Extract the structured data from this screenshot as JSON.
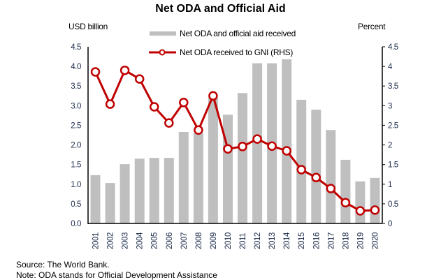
{
  "chart_data": {
    "type": "bar",
    "title": "Net ODA and Official Aid",
    "ylabel_left": "USD billion",
    "ylabel_right": "Percent",
    "xlabel": "",
    "categories": [
      "2001",
      "2002",
      "2003",
      "2004",
      "2005",
      "2006",
      "2007",
      "2008",
      "2009",
      "2010",
      "2011",
      "2012",
      "2013",
      "2014",
      "2015",
      "2016",
      "2017",
      "2018",
      "2019",
      "2020"
    ],
    "series": [
      {
        "name": "Net ODA and official aid received",
        "type": "bar",
        "axis": "left",
        "color": "#bfbfbf",
        "values": [
          1.23,
          1.03,
          1.51,
          1.65,
          1.67,
          1.67,
          2.33,
          2.3,
          3.2,
          2.77,
          3.32,
          4.08,
          4.08,
          4.18,
          3.15,
          2.9,
          2.38,
          1.62,
          1.07,
          1.16
        ]
      },
      {
        "name": "Net ODA received to GNI (RHS)",
        "type": "line",
        "axis": "right",
        "color": "#c00000",
        "values": [
          3.86,
          3.04,
          3.9,
          3.68,
          2.97,
          2.56,
          3.08,
          2.38,
          3.25,
          1.9,
          1.96,
          2.15,
          1.97,
          1.85,
          1.37,
          1.17,
          0.89,
          0.53,
          0.32,
          0.34
        ]
      }
    ],
    "ylim_left": [
      0,
      4.5
    ],
    "ylim_right": [
      0,
      4.5
    ],
    "yticks_left": [
      "0.0",
      "0.5",
      "1.0",
      "1.5",
      "2.0",
      "2.5",
      "3.0",
      "3.5",
      "4.0",
      "4.5"
    ],
    "yticks_right": [
      "0",
      "0.5",
      "1",
      "1.5",
      "2",
      "2.5",
      "3",
      "3.5",
      "4",
      "4.5"
    ],
    "grid": false,
    "legend_position": "top-center"
  },
  "footer": {
    "source": "Source: The World Bank.",
    "note": "Note: ODA stands for Official Development Assistance"
  },
  "colors": {
    "tick_label": "#1c2a4a",
    "axis": "#000000"
  }
}
